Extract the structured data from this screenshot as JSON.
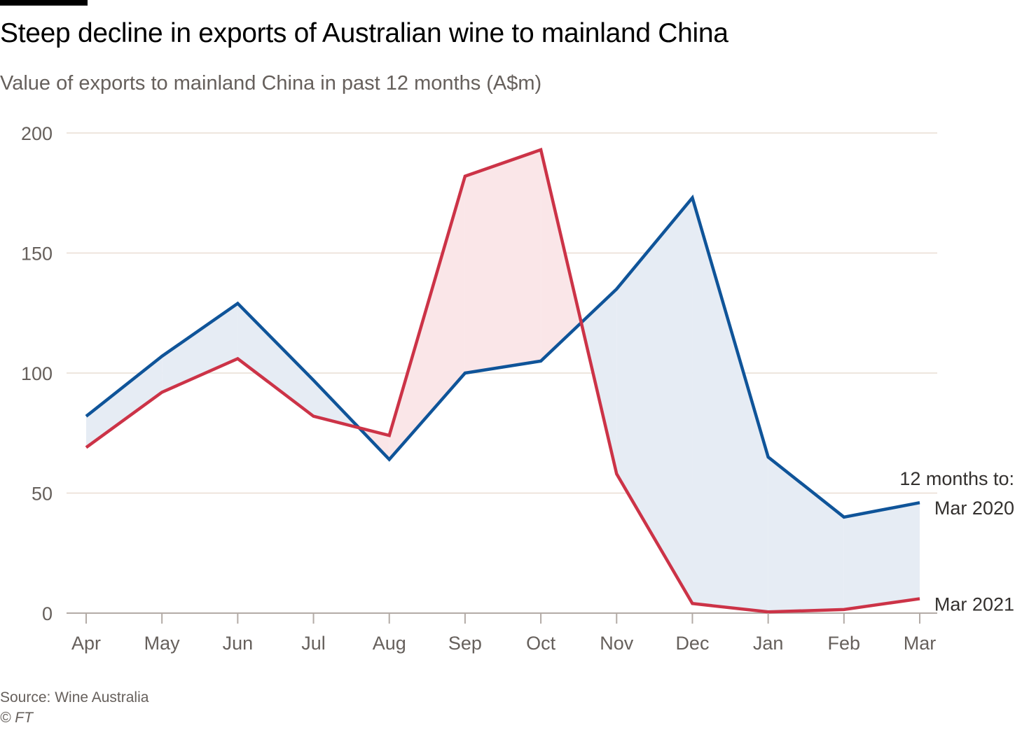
{
  "chart_data": {
    "type": "line",
    "title": "Steep decline in exports of Australian wine to mainland China",
    "subtitle": "Value of exports to mainland China in past 12 months (A$m)",
    "categories": [
      "Apr",
      "May",
      "Jun",
      "Jul",
      "Aug",
      "Sep",
      "Oct",
      "Nov",
      "Dec",
      "Jan",
      "Feb",
      "Mar"
    ],
    "ylim": [
      0,
      200
    ],
    "yticks": [
      0,
      50,
      100,
      150,
      200
    ],
    "grid": true,
    "series": [
      {
        "name": "Mar 2020",
        "color": "#0f5499",
        "values": [
          82,
          107,
          129,
          97,
          64,
          100,
          105,
          135,
          173,
          65,
          40,
          46
        ]
      },
      {
        "name": "Mar 2021",
        "color": "#cc3347",
        "values": [
          69,
          92,
          106,
          82,
          74,
          182,
          193,
          58,
          4,
          0.5,
          1.5,
          6
        ]
      }
    ],
    "fill_colors": {
      "higher_2020": "#e6ecf4",
      "higher_2021": "#fae6e8"
    },
    "legend_heading": "12 months to:",
    "legend_placement": "right",
    "source": "Source: Wine Australia",
    "credit": "© FT"
  }
}
